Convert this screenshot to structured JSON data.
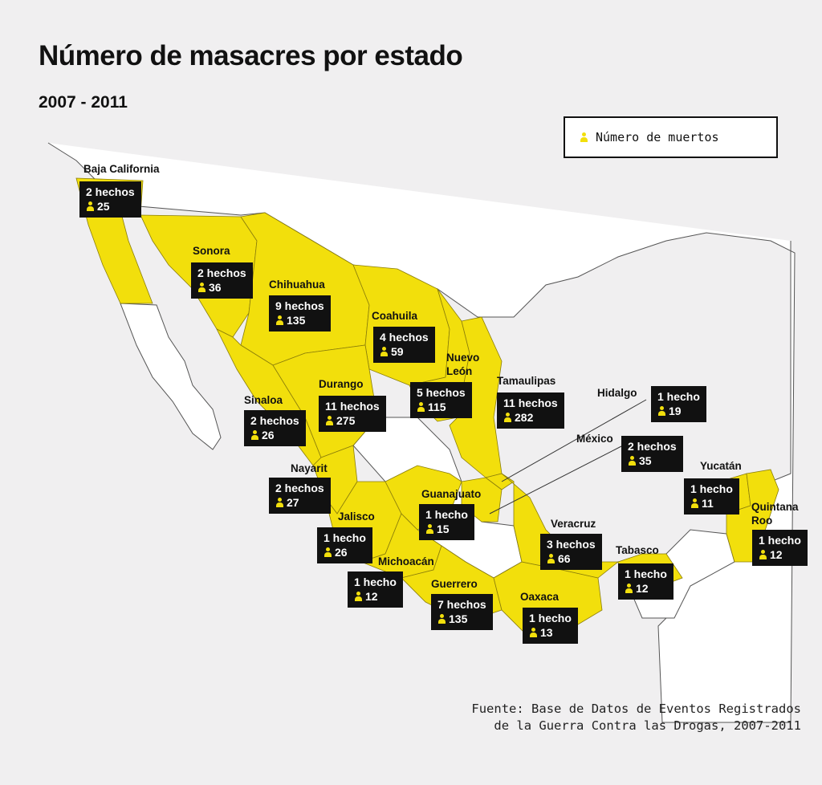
{
  "title": "Número de masacres por estado",
  "subtitle": "2007 - 2011",
  "legend": {
    "label": "Número de muertos",
    "icon": "person-icon"
  },
  "colors": {
    "state_fill": "#f2df0c",
    "state_stroke": "#8a7d0a",
    "land_other": "#ffffff",
    "border": "#555555",
    "box_bg": "#111111"
  },
  "states": [
    {
      "name": "Baja California",
      "hechos": "2 hechos",
      "muertos": "25"
    },
    {
      "name": "Sonora",
      "hechos": "2 hechos",
      "muertos": "36"
    },
    {
      "name": "Chihuahua",
      "hechos": "9 hechos",
      "muertos": "135"
    },
    {
      "name": "Coahuila",
      "hechos": "4 hechos",
      "muertos": "59"
    },
    {
      "name": "Nuevo León",
      "hechos": "5 hechos",
      "muertos": "115"
    },
    {
      "name": "Tamaulipas",
      "hechos": "11 hechos",
      "muertos": "282"
    },
    {
      "name": "Hidalgo",
      "hechos": "1 hecho",
      "muertos": "19"
    },
    {
      "name": "México",
      "hechos": "2 hechos",
      "muertos": "35"
    },
    {
      "name": "Sinaloa",
      "hechos": "2 hechos",
      "muertos": "26"
    },
    {
      "name": "Durango",
      "hechos": "11 hechos",
      "muertos": "275"
    },
    {
      "name": "Nayarit",
      "hechos": "2 hechos",
      "muertos": "27"
    },
    {
      "name": "Jalisco",
      "hechos": "1 hecho",
      "muertos": "26"
    },
    {
      "name": "Guanajuato",
      "hechos": "1 hecho",
      "muertos": "15"
    },
    {
      "name": "Michoacán",
      "hechos": "1 hecho",
      "muertos": "12"
    },
    {
      "name": "Guerrero",
      "hechos": "7 hechos",
      "muertos": "135"
    },
    {
      "name": "Oaxaca",
      "hechos": "1 hecho",
      "muertos": "13"
    },
    {
      "name": "Veracruz",
      "hechos": "3 hechos",
      "muertos": "66"
    },
    {
      "name": "Tabasco",
      "hechos": "1 hecho",
      "muertos": "12"
    },
    {
      "name": "Yucatán",
      "hechos": "1 hecho",
      "muertos": "11"
    },
    {
      "name": "Quintana Roo",
      "hechos": "1 hecho",
      "muertos": "12"
    }
  ],
  "source": {
    "line1": "Fuente: Base de Datos de Eventos Registrados",
    "line2": "de la Guerra Contra las Drogas, 2007-2011"
  }
}
